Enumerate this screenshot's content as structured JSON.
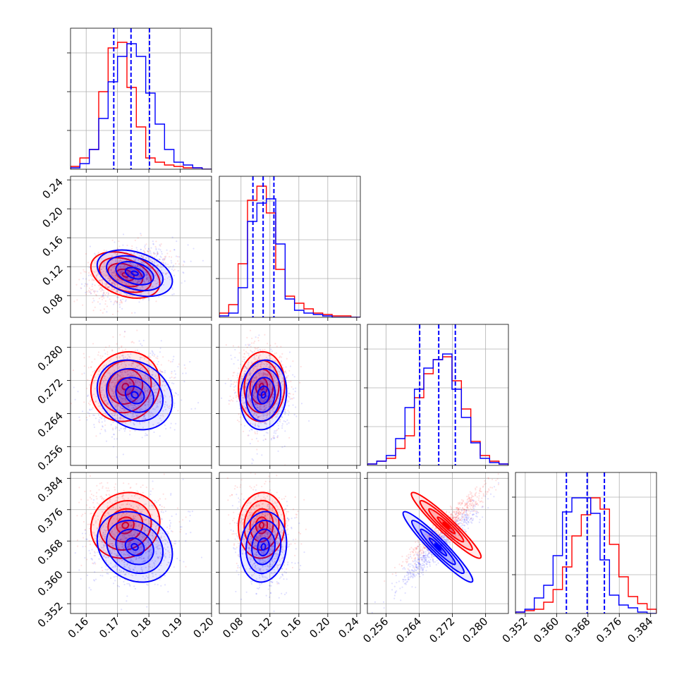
{
  "chart_data": {
    "type": "corner",
    "grid": true,
    "colors": {
      "red": "#ff0000",
      "blue": "#0000ff",
      "grid": "#b0b0b0"
    },
    "axes_limits": [
      [
        0.155,
        0.2
      ],
      [
        0.05,
        0.245
      ],
      [
        0.2515,
        0.2855
      ],
      [
        0.3495,
        0.3855
      ]
    ],
    "x_tick_labels": [
      [
        "0.16",
        "0.17",
        "0.18",
        "0.19",
        "0.20"
      ],
      [
        "0.08",
        "0.12",
        "0.16",
        "0.20",
        "0.24"
      ],
      [
        "0.256",
        "0.264",
        "0.272",
        "0.280"
      ],
      [
        "0.352",
        "0.360",
        "0.368",
        "0.376",
        "0.384"
      ]
    ],
    "x_ticks": [
      [
        0.16,
        0.17,
        0.18,
        0.19,
        0.2
      ],
      [
        0.08,
        0.12,
        0.16,
        0.2,
        0.24
      ],
      [
        0.256,
        0.264,
        0.272,
        0.28
      ],
      [
        0.352,
        0.36,
        0.368,
        0.376,
        0.384
      ]
    ],
    "y_tick_labels": [
      [],
      [
        "0.08",
        "0.12",
        "0.16",
        "0.20",
        "0.24"
      ],
      [
        "0.256",
        "0.264",
        "0.272",
        "0.280"
      ],
      [
        "0.352",
        "0.360",
        "0.368",
        "0.376",
        "0.384"
      ]
    ],
    "quantiles": [
      [
        0.1688,
        0.1743,
        0.1802
      ],
      [
        0.0965,
        0.1106,
        0.1255
      ],
      [
        0.2641,
        0.2687,
        0.2727
      ],
      [
        0.3625,
        0.3678,
        0.3722
      ]
    ],
    "series": [
      {
        "color": "#ff0000",
        "mean": [
          0.1725,
          0.1085,
          0.2705,
          0.372
        ],
        "std": [
          0.0055,
          0.016,
          0.0042,
          0.0042
        ],
        "corr": {
          "1,0": 0.35,
          "2,0": -0.1,
          "2,1": -0.05,
          "3,0": -0.1,
          "3,1": -0.05,
          "3,2": 0.95
        },
        "histograms": [
          [
            0.02,
            0.08,
            0.14,
            0.55,
            0.86,
            0.9,
            0.58,
            0.3,
            0.08,
            0.05,
            0.03,
            0.02,
            0.01,
            0.01,
            0.0
          ],
          [
            0.03,
            0.09,
            0.38,
            0.83,
            0.93,
            0.74,
            0.34,
            0.15,
            0.1,
            0.06,
            0.03,
            0.02,
            0.01,
            0.01,
            0.0
          ],
          [
            0.01,
            0.03,
            0.05,
            0.12,
            0.21,
            0.48,
            0.65,
            0.75,
            0.77,
            0.6,
            0.4,
            0.17,
            0.07,
            0.03,
            0.01
          ],
          [
            0.01,
            0.02,
            0.03,
            0.08,
            0.17,
            0.33,
            0.55,
            0.7,
            0.82,
            0.74,
            0.49,
            0.26,
            0.12,
            0.07,
            0.03
          ]
        ]
      },
      {
        "color": "#0000ff",
        "mean": [
          0.1755,
          0.111,
          0.2685,
          0.3665
        ],
        "std": [
          0.006,
          0.016,
          0.0042,
          0.0045
        ],
        "corr": {
          "1,0": 0.35,
          "2,0": 0.2,
          "2,1": -0.1,
          "3,0": 0.2,
          "3,1": -0.1,
          "3,2": 0.95
        },
        "histograms": [
          [
            0.01,
            0.04,
            0.14,
            0.36,
            0.62,
            0.8,
            0.89,
            0.8,
            0.54,
            0.32,
            0.14,
            0.05,
            0.03,
            0.01,
            0.0
          ],
          [
            0.01,
            0.03,
            0.21,
            0.68,
            0.81,
            0.84,
            0.52,
            0.13,
            0.05,
            0.03,
            0.02,
            0.01,
            0.0,
            0.0,
            0.0
          ],
          [
            0.01,
            0.03,
            0.07,
            0.19,
            0.41,
            0.54,
            0.69,
            0.75,
            0.79,
            0.54,
            0.34,
            0.16,
            0.05,
            0.02,
            0.01
          ],
          [
            0.01,
            0.03,
            0.11,
            0.2,
            0.41,
            0.72,
            0.82,
            0.82,
            0.71,
            0.38,
            0.13,
            0.06,
            0.04,
            0.01,
            0.0
          ]
        ]
      }
    ]
  }
}
